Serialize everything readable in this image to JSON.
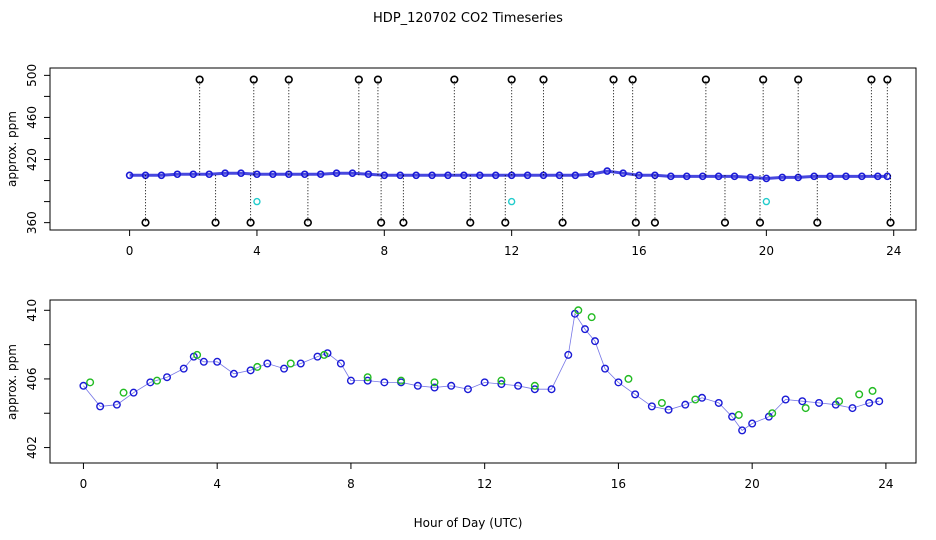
{
  "chart_data": [
    {
      "type": "scatter",
      "title": "HDP_120702  CO2 Timeseries",
      "xlabel": "",
      "ylabel": "approx. ppm",
      "xlim": [
        -2.5,
        24.7
      ],
      "ylim": [
        353,
        507
      ],
      "xticks": [
        0,
        4,
        8,
        12,
        16,
        20,
        24
      ],
      "xtick_labels": [
        "0",
        "4",
        "8",
        "12",
        "16",
        "20",
        "24"
      ],
      "yticks": [
        360,
        380,
        400,
        420,
        440,
        460,
        480,
        500
      ],
      "ytick_labels": [
        "360",
        "",
        "",
        "420",
        "",
        "460",
        "",
        "500"
      ],
      "series": [
        {
          "name": "co2 (blue points)",
          "color": "#1a1ad6",
          "x": [
            0,
            0.5,
            1,
            1.5,
            2,
            2.5,
            3,
            3.5,
            4,
            4.5,
            5,
            5.5,
            6,
            6.5,
            7,
            7.5,
            8,
            8.5,
            9,
            9.5,
            10,
            10.5,
            11,
            11.5,
            12,
            12.5,
            13,
            13.5,
            14,
            14.5,
            15,
            15.5,
            16,
            16.5,
            17,
            17.5,
            18,
            18.5,
            19,
            19.5,
            20,
            20.5,
            21,
            21.5,
            22,
            22.5,
            23,
            23.5,
            23.8
          ],
          "y": [
            405,
            405,
            405,
            406,
            406,
            406,
            407,
            407,
            406,
            406,
            406,
            406,
            406,
            407,
            407,
            406,
            405,
            405,
            405,
            405,
            405,
            405,
            405,
            405,
            405,
            405,
            405,
            405,
            405,
            406,
            409,
            407,
            405,
            405,
            404,
            404,
            404,
            404,
            404,
            403,
            402,
            403,
            403,
            404,
            404,
            404,
            404,
            404,
            404
          ]
        },
        {
          "name": "spikes (black open circles, high)",
          "color": "#000000",
          "x": [
            2.2,
            3.9,
            5.0,
            7.2,
            7.8,
            10.2,
            12.0,
            13.0,
            15.2,
            15.8,
            18.1,
            19.9,
            21.0,
            23.3,
            23.8
          ],
          "y": [
            496,
            496,
            496,
            496,
            496,
            496,
            496,
            496,
            496,
            496,
            496,
            496,
            496,
            496,
            496
          ]
        },
        {
          "name": "dropouts (black open circles, low)",
          "color": "#000000",
          "x": [
            0.5,
            2.7,
            3.8,
            5.6,
            7.9,
            8.6,
            10.7,
            11.8,
            13.6,
            15.9,
            16.5,
            18.7,
            19.8,
            21.6,
            23.9
          ],
          "y": [
            360,
            360,
            360,
            360,
            360,
            360,
            360,
            360,
            360,
            360,
            360,
            360,
            360,
            360,
            360
          ]
        },
        {
          "name": "flagged (cyan points)",
          "color": "#22cccc",
          "x": [
            4.0,
            12.0,
            20.0
          ],
          "y": [
            380,
            380,
            380
          ]
        }
      ]
    },
    {
      "type": "scatter",
      "title": "",
      "xlabel": "Hour of Day (UTC)",
      "ylabel": "approx. ppm",
      "xlim": [
        -1.0,
        24.9
      ],
      "ylim": [
        401.1,
        410.6
      ],
      "xticks": [
        0,
        4,
        8,
        12,
        16,
        20,
        24
      ],
      "xtick_labels": [
        "0",
        "4",
        "8",
        "12",
        "16",
        "20",
        "24"
      ],
      "yticks": [
        402,
        404,
        406,
        408,
        410
      ],
      "ytick_labels": [
        "402",
        "",
        "406",
        "",
        "410"
      ],
      "series": [
        {
          "name": "co2 (blue circles)",
          "color": "#1a1ad6",
          "x": [
            0,
            0.5,
            1,
            1.5,
            2,
            2.5,
            3,
            3.3,
            3.6,
            4,
            4.5,
            5,
            5.5,
            6,
            6.5,
            7,
            7.3,
            7.7,
            8,
            8.5,
            9,
            9.5,
            10,
            10.5,
            11,
            11.5,
            12,
            12.5,
            13,
            13.5,
            14,
            14.5,
            14.7,
            15,
            15.3,
            15.6,
            16,
            16.5,
            17,
            17.5,
            18,
            18.5,
            19,
            19.4,
            19.7,
            20,
            20.5,
            21,
            21.5,
            22,
            22.5,
            23,
            23.5,
            23.8
          ],
          "y": [
            405.6,
            404.4,
            404.5,
            405.2,
            405.8,
            406.1,
            406.6,
            407.3,
            407.0,
            407.0,
            406.3,
            406.5,
            406.9,
            406.6,
            406.9,
            407.3,
            407.5,
            406.9,
            405.9,
            405.9,
            405.8,
            405.8,
            405.6,
            405.5,
            405.6,
            405.4,
            405.8,
            405.7,
            405.6,
            405.4,
            405.4,
            407.4,
            409.8,
            408.9,
            408.2,
            406.6,
            405.8,
            405.1,
            404.4,
            404.2,
            404.5,
            404.9,
            404.6,
            403.8,
            403.0,
            403.4,
            403.8,
            404.8,
            404.7,
            404.6,
            404.5,
            404.3,
            404.6,
            404.7
          ]
        },
        {
          "name": "co2 (green circles)",
          "color": "#22bb22",
          "x": [
            0.2,
            1.2,
            2.2,
            3.4,
            5.2,
            6.2,
            7.2,
            8.5,
            9.5,
            10.5,
            12.5,
            13.5,
            14.8,
            15.2,
            16.3,
            17.3,
            18.3,
            19.6,
            20.6,
            21.6,
            22.6,
            23.2,
            23.6
          ],
          "y": [
            405.8,
            405.2,
            405.9,
            407.4,
            406.7,
            406.9,
            407.4,
            406.1,
            405.9,
            405.8,
            405.9,
            405.6,
            410.0,
            409.6,
            406.0,
            404.6,
            404.8,
            403.9,
            404.0,
            404.3,
            404.7,
            405.1,
            405.3
          ]
        }
      ]
    }
  ]
}
